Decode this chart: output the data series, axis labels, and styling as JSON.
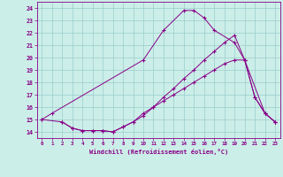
{
  "xlabel": "Windchill (Refroidissement éolien,°C)",
  "xlim": [
    -0.5,
    23.5
  ],
  "ylim": [
    13.5,
    24.5
  ],
  "yticks": [
    14,
    15,
    16,
    17,
    18,
    19,
    20,
    21,
    22,
    23,
    24
  ],
  "xticks": [
    0,
    1,
    2,
    3,
    4,
    5,
    6,
    7,
    8,
    9,
    10,
    11,
    12,
    13,
    14,
    15,
    16,
    17,
    18,
    19,
    20,
    21,
    22,
    23
  ],
  "bg_color": "#cceee8",
  "line_color": "#880088",
  "grid_color": "#99cccc",
  "line1_x": [
    0,
    1,
    10,
    12,
    14,
    15,
    16,
    17,
    19,
    20,
    21,
    22,
    23
  ],
  "line1_y": [
    15.0,
    15.5,
    19.8,
    22.2,
    23.8,
    23.8,
    23.2,
    22.2,
    21.2,
    19.8,
    16.8,
    15.5,
    14.8
  ],
  "line2_x": [
    0,
    2,
    3,
    4,
    5,
    6,
    7,
    8,
    9,
    10,
    11,
    12,
    13,
    14,
    15,
    16,
    17,
    18,
    19,
    20,
    22,
    23
  ],
  "line2_y": [
    15.0,
    14.8,
    14.3,
    14.1,
    14.1,
    14.1,
    14.0,
    14.4,
    14.8,
    15.3,
    16.0,
    16.8,
    17.5,
    18.3,
    19.0,
    19.8,
    20.5,
    21.2,
    21.8,
    19.8,
    15.5,
    14.8
  ],
  "line3_x": [
    2,
    3,
    4,
    5,
    6,
    7,
    8,
    9,
    10,
    11,
    12,
    13,
    14,
    15,
    16,
    17,
    18,
    19,
    20,
    21,
    22,
    23
  ],
  "line3_y": [
    14.8,
    14.3,
    14.1,
    14.1,
    14.1,
    14.0,
    14.4,
    14.8,
    15.5,
    16.0,
    16.5,
    17.0,
    17.5,
    18.0,
    18.5,
    19.0,
    19.5,
    19.8,
    19.8,
    16.8,
    15.5,
    14.8
  ]
}
